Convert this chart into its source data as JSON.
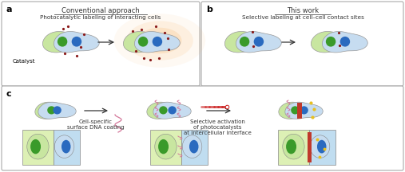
{
  "fig_width": 5.07,
  "fig_height": 2.16,
  "dpi": 100,
  "bg_color": "#ffffff",
  "cell_green_body": "#c8e6a0",
  "cell_blue_body": "#c6dcf0",
  "nucleus_green": "#3a9a2a",
  "nucleus_blue": "#2a6abf",
  "dot_color": "#8b1a1a",
  "arrow_color": "#333333",
  "glow_orange": "#f5a040",
  "red_bar_color": "#c0392b",
  "pink_dna_color": "#d4779a",
  "panel_a_title": "Conventional approach",
  "panel_a_sub": "Photocatalytic labeling of interacting cells",
  "panel_a_note": "Catalyst",
  "panel_b_title": "This work",
  "panel_b_sub": "Selective labeling at cell–cell contact sites",
  "panel_c_label1": "Cell-specific\nsurface DNA coating",
  "panel_c_label2": "Selective activation\nof photocatalysts\nat intercellular interface",
  "label_fs": 7,
  "title_fs": 6.0,
  "sub_fs": 5.2,
  "note_fs": 5.0
}
